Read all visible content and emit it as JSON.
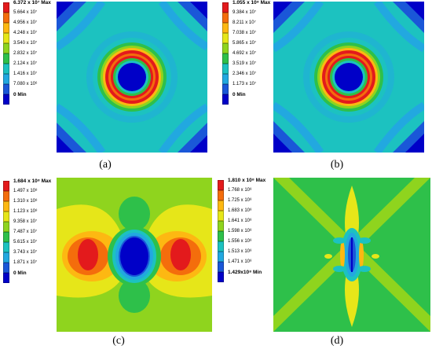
{
  "panels": [
    {
      "caption": "(a)",
      "legend": [
        "6.372 x 10⁷ Max",
        "5.664 x 10⁷",
        "4.956 x 10⁷",
        "4.248 x 10⁷",
        "3.540 x 10⁷",
        "2.832 x 10⁷",
        "2.124 x 10⁷",
        "1.416 x 10⁷",
        "7.080 x 10⁶",
        "0 Min"
      ]
    },
    {
      "caption": "(b)",
      "legend": [
        "1.055 x 10⁸ Max",
        "9.384 x 10⁷",
        "8.211 x 10⁷",
        "7.038 x 10⁷",
        "5.865 x 10⁷",
        "4.692 x 10⁷",
        "3.519 x 10⁷",
        "2.346 x 10⁷",
        "1.173 x 10⁷",
        "0 Min"
      ]
    },
    {
      "caption": "(c)",
      "legend": [
        "1.684 x 10⁸ Max",
        "1.497 x 10⁸",
        "1.310 x 10⁸",
        "1.123 x 10⁸",
        "9.358 x 10⁷",
        "7.487 x 10⁷",
        "5.615 x 10⁷",
        "3.743 x 10⁷",
        "1.871 x 10⁷",
        "0 Min"
      ]
    },
    {
      "caption": "(d)",
      "legend": [
        "1.810 x 10⁸ Max",
        "1.768 x 10⁸",
        "1.725 x 10⁸",
        "1.683 x 10⁸",
        "1.641 x 10⁸",
        "1.598 x 10⁸",
        "1.556 x 10⁸",
        "1.513 x 10⁸",
        "1.471 x 10⁸",
        "1.429x10⁸ Min"
      ]
    }
  ],
  "legend_colors": [
    "#e31a1c",
    "#f46d0c",
    "#fdb812",
    "#e6e619",
    "#8fd41e",
    "#2ec04a",
    "#1cc2c0",
    "#22a8e0",
    "#1a57d8",
    "#0000c8"
  ]
}
